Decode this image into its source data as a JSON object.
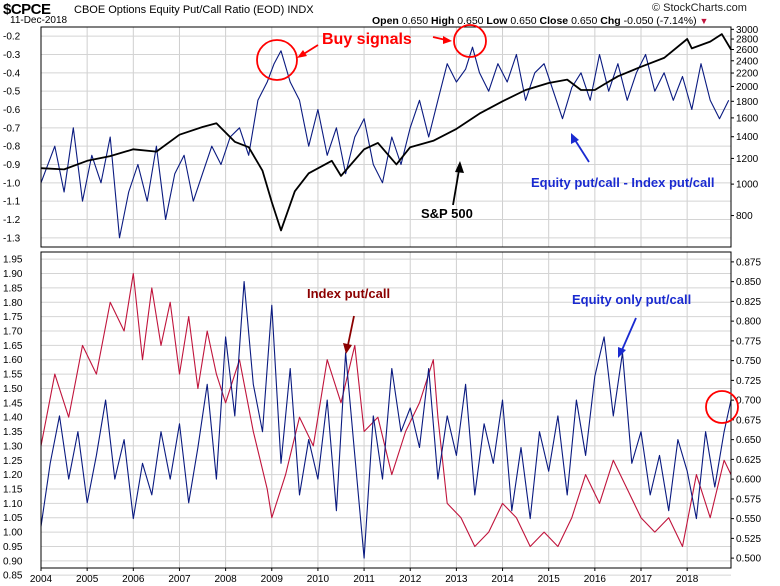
{
  "header": {
    "ticker": "$CPCE",
    "title": "CBOE Options Equity Put/Call Ratio (EOD)",
    "exchange": "INDX",
    "date": "11-Dec-2018",
    "open_label": "Open",
    "open": "0.650",
    "high_label": "High",
    "high": "0.650",
    "low_label": "Low",
    "low": "0.650",
    "close_label": "Close",
    "close": "0.650",
    "chg_label": "Chg",
    "chg": "-0.050 (-7.14%)",
    "brand": "© StockCharts.com"
  },
  "colors": {
    "navy": "#0a1a80",
    "black": "#000000",
    "red_series": "#c0143c",
    "red_annotation": "#ff0000",
    "blue_annotation": "#1a2ad0",
    "maroon_annotation": "#8b0000",
    "grid": "#c8c8c8"
  },
  "chart_data": [
    {
      "type": "line",
      "panel": "top",
      "xlim": [
        2004.0,
        2018.95
      ],
      "left_axis": {
        "ylim": [
          -1.35,
          -0.15
        ],
        "ticks": [
          "-0.2",
          "-0.3",
          "-0.4",
          "-0.5",
          "-0.6",
          "-0.7",
          "-0.8",
          "-0.9",
          "-1.0",
          "-1.1",
          "-1.2",
          "-1.3"
        ]
      },
      "right_axis": {
        "scale": "log",
        "ylim": [
          640,
          3050
        ],
        "ticks": [
          "3000",
          "2800",
          "2600",
          "2400",
          "2200",
          "2000",
          "1800",
          "1600",
          "1400",
          "1200",
          "1000",
          "800"
        ]
      },
      "series": [
        {
          "name": "Equity put/call - Index put/call",
          "axis": "left",
          "color": "#0a1a80",
          "x": [
            2004.0,
            2004.3,
            2004.5,
            2004.7,
            2004.9,
            2005.1,
            2005.3,
            2005.5,
            2005.7,
            2005.9,
            2006.1,
            2006.3,
            2006.5,
            2006.7,
            2006.9,
            2007.1,
            2007.3,
            2007.5,
            2007.7,
            2007.9,
            2008.1,
            2008.3,
            2008.5,
            2008.7,
            2008.9,
            2009.05,
            2009.2,
            2009.4,
            2009.6,
            2009.8,
            2010.0,
            2010.2,
            2010.4,
            2010.6,
            2010.8,
            2011.0,
            2011.2,
            2011.4,
            2011.6,
            2011.8,
            2012.0,
            2012.2,
            2012.4,
            2012.6,
            2012.8,
            2013.0,
            2013.2,
            2013.35,
            2013.5,
            2013.7,
            2013.9,
            2014.1,
            2014.3,
            2014.5,
            2014.7,
            2014.9,
            2015.1,
            2015.3,
            2015.5,
            2015.7,
            2015.9,
            2016.1,
            2016.3,
            2016.5,
            2016.7,
            2016.9,
            2017.1,
            2017.3,
            2017.5,
            2017.7,
            2017.9,
            2018.1,
            2018.3,
            2018.5,
            2018.7,
            2018.9
          ],
          "y": [
            -1.0,
            -0.8,
            -1.05,
            -0.7,
            -1.1,
            -0.85,
            -1.0,
            -0.75,
            -1.3,
            -1.05,
            -0.9,
            -1.1,
            -0.8,
            -1.2,
            -0.95,
            -0.85,
            -1.1,
            -0.95,
            -0.8,
            -0.9,
            -0.75,
            -0.7,
            -0.85,
            -0.55,
            -0.45,
            -0.35,
            -0.28,
            -0.45,
            -0.55,
            -0.8,
            -0.6,
            -0.85,
            -0.7,
            -0.95,
            -0.75,
            -0.65,
            -0.9,
            -1.0,
            -0.75,
            -0.9,
            -0.7,
            -0.55,
            -0.75,
            -0.55,
            -0.35,
            -0.45,
            -0.38,
            -0.26,
            -0.4,
            -0.5,
            -0.35,
            -0.45,
            -0.3,
            -0.55,
            -0.4,
            -0.35,
            -0.5,
            -0.65,
            -0.48,
            -0.4,
            -0.55,
            -0.3,
            -0.5,
            -0.35,
            -0.55,
            -0.4,
            -0.3,
            -0.5,
            -0.4,
            -0.55,
            -0.42,
            -0.6,
            -0.35,
            -0.55,
            -0.65,
            -0.55
          ]
        },
        {
          "name": "S&P 500",
          "axis": "right",
          "color": "#000000",
          "x": [
            2004.0,
            2004.5,
            2005.0,
            2005.5,
            2006.0,
            2006.5,
            2007.0,
            2007.5,
            2007.8,
            2008.2,
            2008.5,
            2008.8,
            2009.0,
            2009.2,
            2009.5,
            2009.8,
            2010.3,
            2010.5,
            2011.0,
            2011.3,
            2011.7,
            2012.0,
            2012.5,
            2013.0,
            2013.5,
            2014.0,
            2014.5,
            2015.0,
            2015.4,
            2015.7,
            2016.0,
            2016.2,
            2016.5,
            2017.0,
            2017.5,
            2018.0,
            2018.1,
            2018.5,
            2018.75,
            2018.95
          ],
          "y": [
            1120,
            1110,
            1180,
            1220,
            1280,
            1260,
            1420,
            1500,
            1540,
            1350,
            1300,
            1100,
            880,
            720,
            950,
            1080,
            1180,
            1060,
            1280,
            1340,
            1150,
            1300,
            1360,
            1480,
            1650,
            1800,
            1950,
            2050,
            2100,
            1950,
            1950,
            2030,
            2150,
            2300,
            2450,
            2800,
            2620,
            2750,
            2900,
            2600
          ]
        }
      ],
      "annotations": [
        "Buy signals",
        "S&P 500",
        "Equity put/call - Index put/call"
      ]
    },
    {
      "type": "line",
      "panel": "bottom",
      "xlim": [
        2004.0,
        2018.95
      ],
      "x_tick_labels": [
        "2004",
        "2005",
        "2006",
        "2007",
        "2008",
        "2009",
        "2010",
        "2011",
        "2012",
        "2013",
        "2014",
        "2015",
        "2016",
        "2017",
        "2018"
      ],
      "left_axis": {
        "ylim": [
          0.875,
          1.975
        ],
        "ticks": [
          "1.95",
          "1.90",
          "1.85",
          "1.80",
          "1.75",
          "1.70",
          "1.65",
          "1.60",
          "1.55",
          "1.50",
          "1.45",
          "1.40",
          "1.35",
          "1.30",
          "1.25",
          "1.20",
          "1.15",
          "1.10",
          "1.05",
          "1.00",
          "0.95",
          "0.90",
          "0.85"
        ]
      },
      "right_axis": {
        "ylim": [
          0.4875,
          0.8875
        ],
        "ticks": [
          "0.875",
          "0.850",
          "0.825",
          "0.800",
          "0.775",
          "0.750",
          "0.725",
          "0.700",
          "0.675",
          "0.650",
          "0.625",
          "0.600",
          "0.575",
          "0.550",
          "0.525",
          "0.500"
        ]
      },
      "series": [
        {
          "name": "Index put/call",
          "axis": "left",
          "color": "#c0143c",
          "x": [
            2004.0,
            2004.3,
            2004.6,
            2004.9,
            2005.2,
            2005.5,
            2005.8,
            2006.0,
            2006.2,
            2006.4,
            2006.6,
            2006.8,
            2007.0,
            2007.2,
            2007.4,
            2007.6,
            2007.8,
            2008.0,
            2008.3,
            2008.6,
            2008.9,
            2009.0,
            2009.3,
            2009.6,
            2009.9,
            2010.2,
            2010.5,
            2010.8,
            2011.0,
            2011.3,
            2011.6,
            2011.9,
            2012.2,
            2012.5,
            2012.6,
            2012.8,
            2013.1,
            2013.4,
            2013.7,
            2014.0,
            2014.3,
            2014.6,
            2014.9,
            2015.2,
            2015.5,
            2015.8,
            2016.1,
            2016.4,
            2016.7,
            2017.0,
            2017.3,
            2017.6,
            2017.9,
            2018.2,
            2018.5,
            2018.8,
            2018.95
          ],
          "y": [
            1.3,
            1.55,
            1.4,
            1.65,
            1.55,
            1.8,
            1.7,
            1.9,
            1.6,
            1.85,
            1.65,
            1.8,
            1.55,
            1.75,
            1.5,
            1.7,
            1.55,
            1.45,
            1.6,
            1.35,
            1.15,
            1.05,
            1.2,
            1.4,
            1.3,
            1.6,
            1.45,
            1.65,
            1.35,
            1.4,
            1.2,
            1.35,
            1.45,
            1.6,
            1.4,
            1.1,
            1.05,
            0.95,
            1.0,
            1.1,
            1.05,
            0.95,
            1.0,
            0.95,
            1.05,
            1.2,
            1.1,
            1.25,
            1.15,
            1.05,
            1.0,
            1.05,
            0.95,
            1.2,
            1.05,
            1.25,
            1.2
          ]
        },
        {
          "name": "Equity only put/call",
          "axis": "right",
          "color": "#0a1a80",
          "x": [
            2004.0,
            2004.2,
            2004.4,
            2004.6,
            2004.8,
            2005.0,
            2005.2,
            2005.4,
            2005.6,
            2005.8,
            2006.0,
            2006.2,
            2006.4,
            2006.6,
            2006.8,
            2007.0,
            2007.2,
            2007.4,
            2007.6,
            2007.8,
            2008.0,
            2008.2,
            2008.4,
            2008.6,
            2008.8,
            2009.0,
            2009.2,
            2009.4,
            2009.6,
            2009.8,
            2010.0,
            2010.2,
            2010.4,
            2010.6,
            2010.8,
            2011.0,
            2011.2,
            2011.4,
            2011.6,
            2011.8,
            2012.0,
            2012.2,
            2012.4,
            2012.6,
            2012.8,
            2013.0,
            2013.2,
            2013.4,
            2013.6,
            2013.8,
            2014.0,
            2014.2,
            2014.4,
            2014.6,
            2014.8,
            2015.0,
            2015.2,
            2015.4,
            2015.6,
            2015.8,
            2016.0,
            2016.2,
            2016.4,
            2016.6,
            2016.8,
            2017.0,
            2017.2,
            2017.4,
            2017.6,
            2017.8,
            2018.0,
            2018.2,
            2018.4,
            2018.6,
            2018.8,
            2018.95
          ],
          "y": [
            0.54,
            0.62,
            0.68,
            0.6,
            0.66,
            0.57,
            0.63,
            0.7,
            0.6,
            0.65,
            0.55,
            0.62,
            0.58,
            0.66,
            0.6,
            0.67,
            0.57,
            0.64,
            0.72,
            0.6,
            0.78,
            0.68,
            0.85,
            0.72,
            0.66,
            0.82,
            0.62,
            0.74,
            0.58,
            0.65,
            0.6,
            0.7,
            0.56,
            0.76,
            0.63,
            0.5,
            0.68,
            0.6,
            0.74,
            0.66,
            0.69,
            0.64,
            0.74,
            0.6,
            0.68,
            0.63,
            0.72,
            0.58,
            0.67,
            0.62,
            0.7,
            0.56,
            0.64,
            0.55,
            0.66,
            0.61,
            0.68,
            0.58,
            0.7,
            0.63,
            0.73,
            0.78,
            0.68,
            0.76,
            0.62,
            0.66,
            0.58,
            0.63,
            0.56,
            0.65,
            0.61,
            0.55,
            0.66,
            0.59,
            0.66,
            0.7
          ]
        }
      ],
      "annotations": [
        "Index put/call",
        "Equity only put/call"
      ]
    }
  ]
}
